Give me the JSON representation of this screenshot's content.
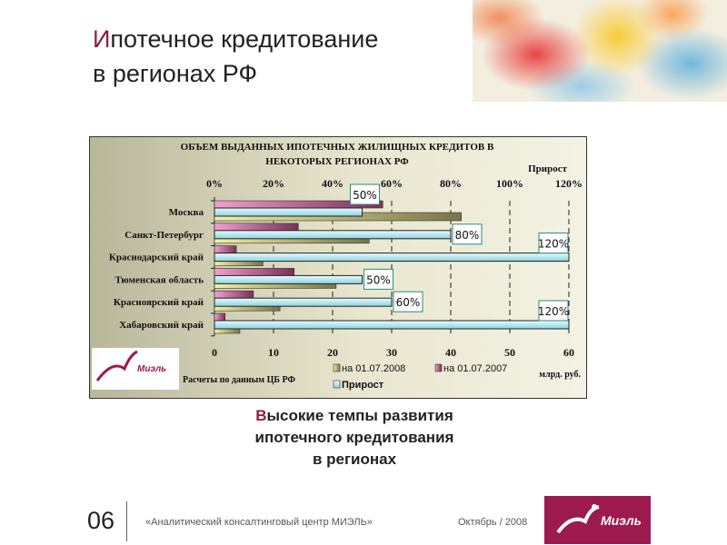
{
  "slide": {
    "title_first": "И",
    "title_rest_line1": "потечное кредитование",
    "title_line2": "в регионах РФ",
    "subtitle_first": "В",
    "subtitle_rest_line1": "ысокие темпы развития",
    "subtitle_line2": "ипотечного кредитования",
    "subtitle_line3": "в регионах",
    "slide_number": "06",
    "footer_company": "«Аналитический консалтинговый центр МИЭЛЬ»",
    "footer_date": "Октябрь / 2008",
    "logo_text": "Миэль",
    "chart_logo_text": "Миэль"
  },
  "colors": {
    "accent": "#8e1b45",
    "bar_2008": "#8a8758",
    "bar_2007": "#9a3f6a",
    "bar_growth": "#a8e0ea"
  },
  "chart_data": {
    "type": "bar",
    "orientation": "horizontal",
    "title_line1": "ОБЪЕМ ВЫДАННЫХ ИПОТЕЧНЫХ ЖИЛИЩНЫХ КРЕДИТОВ В",
    "title_line2": "НЕКОТОРЫХ РЕГИОНАХ РФ",
    "categories": [
      "Москва",
      "Санкт-Петербург",
      "Краснодарский край",
      "Тюменская область",
      "Красноярский край",
      "Хабаровский край"
    ],
    "series": [
      {
        "name": "на 01.07.2007",
        "axis": "bottom",
        "values": [
          28.5,
          14.2,
          3.7,
          13.5,
          6.6,
          1.8
        ]
      },
      {
        "name": "Прирост",
        "axis": "top",
        "values": [
          50,
          80,
          120,
          50,
          60,
          120
        ],
        "labels": [
          "50%",
          "80%",
          "120%",
          "50%",
          "60%",
          "120%"
        ]
      },
      {
        "name": "на 01.07.2008",
        "axis": "bottom",
        "values": [
          41.8,
          26.2,
          8.2,
          20.6,
          11.1,
          4.3
        ]
      }
    ],
    "bottom_axis": {
      "label": "млрд. руб.",
      "range": [
        0,
        60
      ],
      "ticks": [
        "0",
        "10",
        "20",
        "30",
        "40",
        "50",
        "60"
      ]
    },
    "top_axis": {
      "label": "Прирост",
      "range": [
        0,
        120
      ],
      "ticks": [
        "0%",
        "20%",
        "40%",
        "60%",
        "80%",
        "100%",
        "120%"
      ]
    },
    "legend": [
      "на 01.07.2008",
      "на 01.07.2007",
      "Прирост"
    ],
    "legend_placement": "bottom",
    "source_note": "Расчеты по данным ЦБ РФ",
    "grid": true
  }
}
